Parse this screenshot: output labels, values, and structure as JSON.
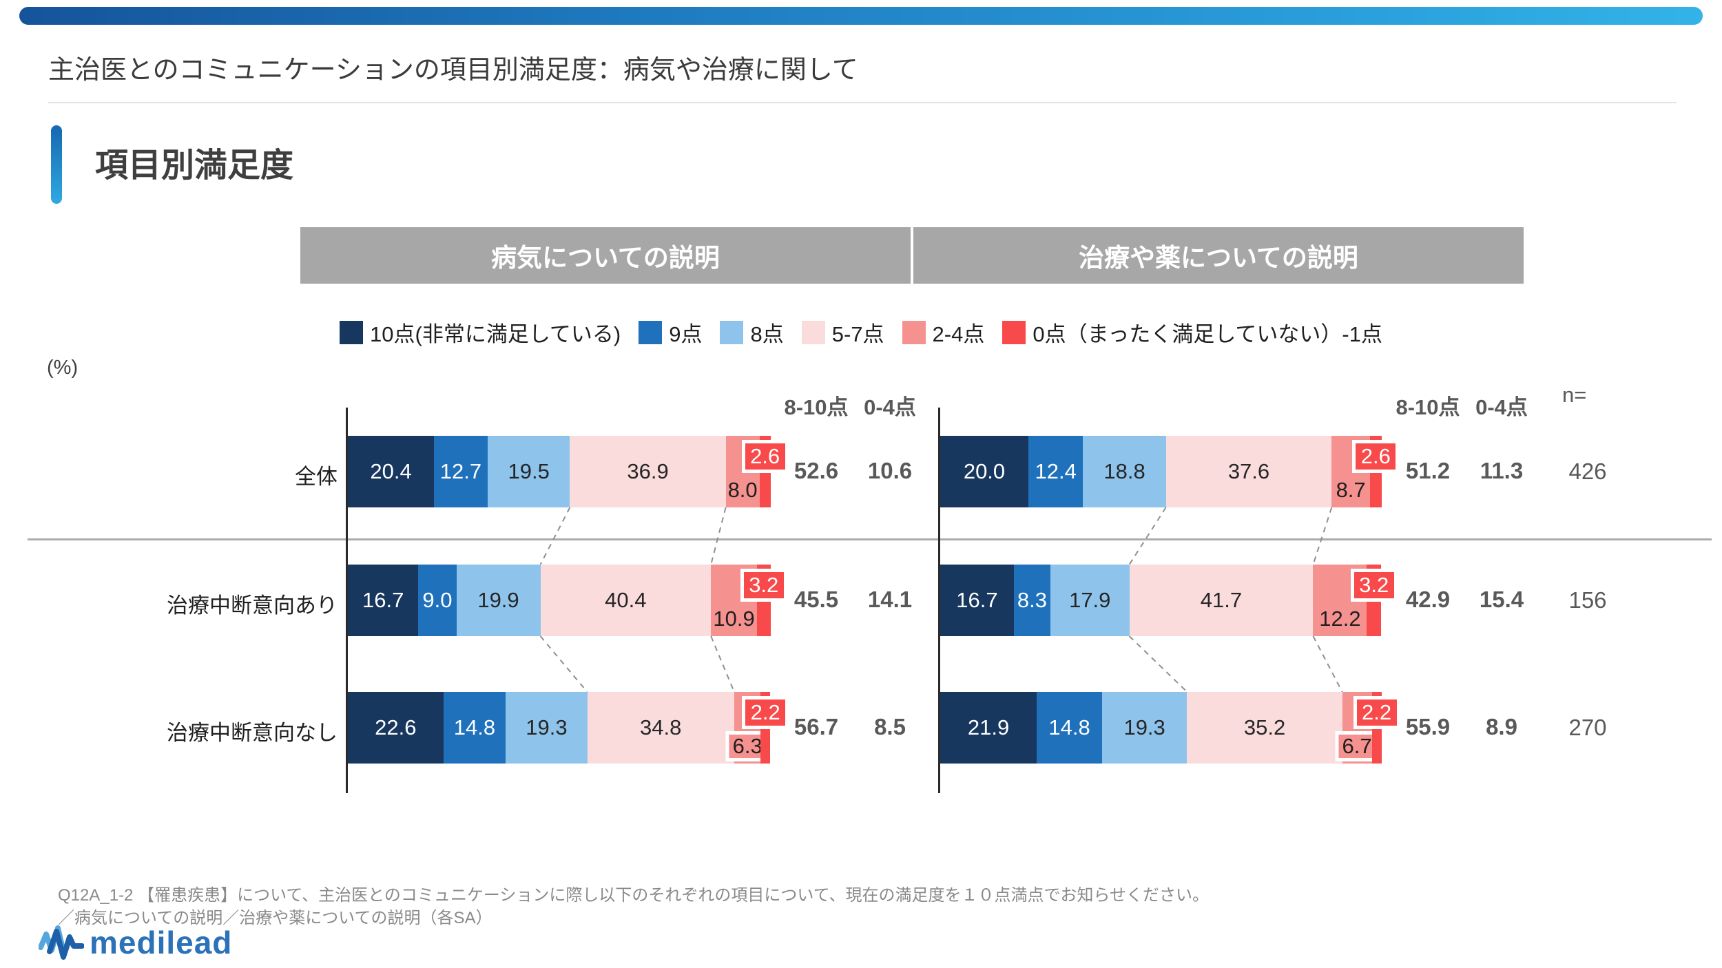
{
  "header": {
    "title": "主治医とのコミュニケーションの項目別満足度：病気や治療に関して",
    "section_title": "項目別満足度"
  },
  "axis_unit_label": "(%)",
  "summary_headers": {
    "high": "8-10点",
    "low": "0-4点",
    "n": "n="
  },
  "rows": [
    {
      "label": "全体",
      "n": "426"
    },
    {
      "label": "治療中断意向あり",
      "n": "156"
    },
    {
      "label": "治療中断意向なし",
      "n": "270"
    }
  ],
  "chart_data": [
    {
      "type": "bar",
      "stacked": true,
      "orientation": "horizontal",
      "title": "病気についての説明",
      "unit": "%",
      "xlim": [
        0,
        100
      ],
      "categories": [
        "全体",
        "治療中断意向あり",
        "治療中断意向なし"
      ],
      "series": [
        {
          "name": "10点(非常に満足している)",
          "color": "#17375e",
          "values": [
            20.4,
            16.7,
            22.6
          ]
        },
        {
          "name": "9点",
          "color": "#1f71bc",
          "values": [
            12.7,
            9.0,
            14.8
          ]
        },
        {
          "name": "8点",
          "color": "#8ec3ec",
          "values": [
            19.5,
            19.9,
            19.3
          ]
        },
        {
          "name": "5-7点",
          "color": "#fadcdc",
          "values": [
            36.9,
            40.4,
            34.8
          ]
        },
        {
          "name": "2-4点",
          "color": "#f5918f",
          "values": [
            8.0,
            10.9,
            6.3
          ]
        },
        {
          "name": "0点（まったく満足していない）-1点",
          "color": "#f84a4a",
          "values": [
            2.6,
            3.2,
            2.2
          ]
        }
      ],
      "totals_high_8_10": [
        52.6,
        45.5,
        56.7
      ],
      "totals_low_0_4": [
        10.6,
        14.1,
        8.5
      ],
      "n": [
        426,
        156,
        270
      ]
    },
    {
      "type": "bar",
      "stacked": true,
      "orientation": "horizontal",
      "title": "治療や薬についての説明",
      "unit": "%",
      "xlim": [
        0,
        100
      ],
      "categories": [
        "全体",
        "治療中断意向あり",
        "治療中断意向なし"
      ],
      "series": [
        {
          "name": "10点(非常に満足している)",
          "color": "#17375e",
          "values": [
            20.0,
            16.7,
            21.9
          ]
        },
        {
          "name": "9点",
          "color": "#1f71bc",
          "values": [
            12.4,
            8.3,
            14.8
          ]
        },
        {
          "name": "8点",
          "color": "#8ec3ec",
          "values": [
            18.8,
            17.9,
            19.3
          ]
        },
        {
          "name": "5-7点",
          "color": "#fadcdc",
          "values": [
            37.6,
            41.7,
            35.2
          ]
        },
        {
          "name": "2-4点",
          "color": "#f5918f",
          "values": [
            8.7,
            12.2,
            6.7
          ]
        },
        {
          "name": "0点（まったく満足していない）-1点",
          "color": "#f84a4a",
          "values": [
            2.6,
            3.2,
            2.2
          ]
        }
      ],
      "totals_high_8_10": [
        51.2,
        42.9,
        55.9
      ],
      "totals_low_0_4": [
        11.3,
        15.4,
        8.9
      ],
      "n": [
        426,
        156,
        270
      ]
    }
  ],
  "footnote": {
    "line1": "Q12A_1-2 【罹患疾患】について、主治医とのコミュニケーションに際し以下のそれぞれの項目について、現在の満足度を１０点満点でお知らせください。",
    "line2": "／病気についての説明／治療や薬についての説明（各SA）"
  },
  "logo": {
    "text": "medilead"
  },
  "palette": {
    "top_bar_gradient": [
      "#15549b",
      "#33b3e8"
    ],
    "band_gray": "#a7a7a7",
    "summary_text": "#595959",
    "red_callout": "#f84a4a",
    "logo_blue": "#2b72b9",
    "logo_light_blue": "#55a7db"
  }
}
